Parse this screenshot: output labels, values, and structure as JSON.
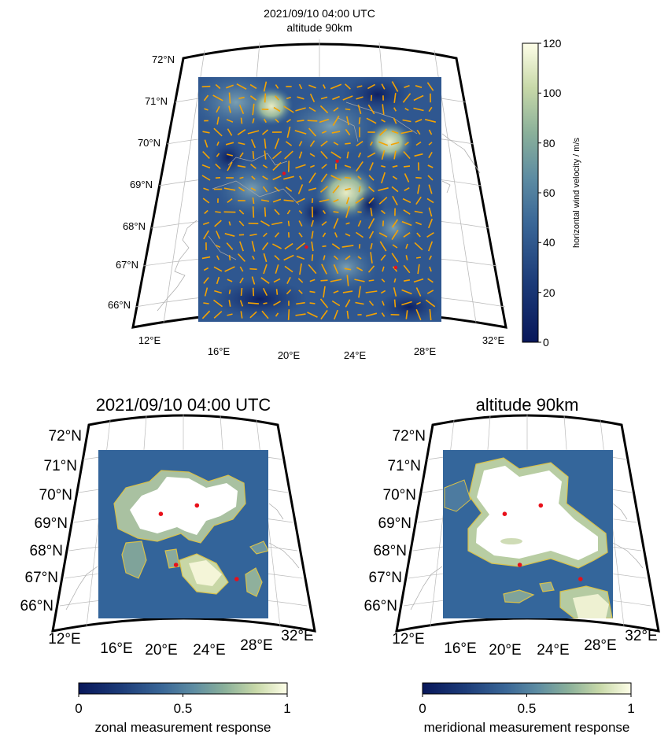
{
  "top_map": {
    "title_line1": "2021/09/10 04:00 UTC",
    "title_line2": "altitude 90km",
    "lat_labels": [
      "72°N",
      "71°N",
      "70°N",
      "69°N",
      "68°N",
      "67°N",
      "66°N"
    ],
    "lon_labels": [
      "12°E",
      "16°E",
      "20°E",
      "24°E",
      "28°E",
      "32°E"
    ],
    "colorbar": {
      "label": "horizontal wind velocity / m/s",
      "ticks": [
        "0",
        "20",
        "40",
        "60",
        "80",
        "100",
        "120"
      ],
      "range": [
        0,
        120
      ]
    },
    "stations": [
      {
        "lon": 19.8,
        "lat": 69.3
      },
      {
        "lon": 22.9,
        "lat": 69.6
      },
      {
        "lon": 21.1,
        "lat": 67.5
      },
      {
        "lon": 26.3,
        "lat": 67.0
      }
    ],
    "arrow_color": "#f5a300"
  },
  "bottom_left_map": {
    "title": "2021/09/10 04:00 UTC",
    "lat_labels": [
      "72°N",
      "71°N",
      "70°N",
      "69°N",
      "68°N",
      "67°N",
      "66°N"
    ],
    "lon_labels": [
      "12°E",
      "16°E",
      "20°E",
      "24°E",
      "28°E",
      "32°E"
    ],
    "colorbar": {
      "label": "zonal measurement response",
      "ticks": [
        "0",
        "0.5",
        "1"
      ],
      "range": [
        0,
        1
      ]
    }
  },
  "bottom_right_map": {
    "title": "altitude 90km",
    "lat_labels": [
      "72°N",
      "71°N",
      "70°N",
      "69°N",
      "68°N",
      "67°N",
      "66°N"
    ],
    "lon_labels": [
      "12°E",
      "16°E",
      "20°E",
      "24°E",
      "28°E",
      "32°E"
    ],
    "colorbar": {
      "label": "meridional measurement response",
      "ticks": [
        "0",
        "0.5",
        "1"
      ],
      "range": [
        0,
        1
      ]
    }
  },
  "colors": {
    "station": "#e8101a",
    "contour": "#d8c14a",
    "coastline": "#a8a8a8",
    "map_dark": "#08175a",
    "map_mid": "#335f95",
    "map_light": "#fefee8"
  }
}
